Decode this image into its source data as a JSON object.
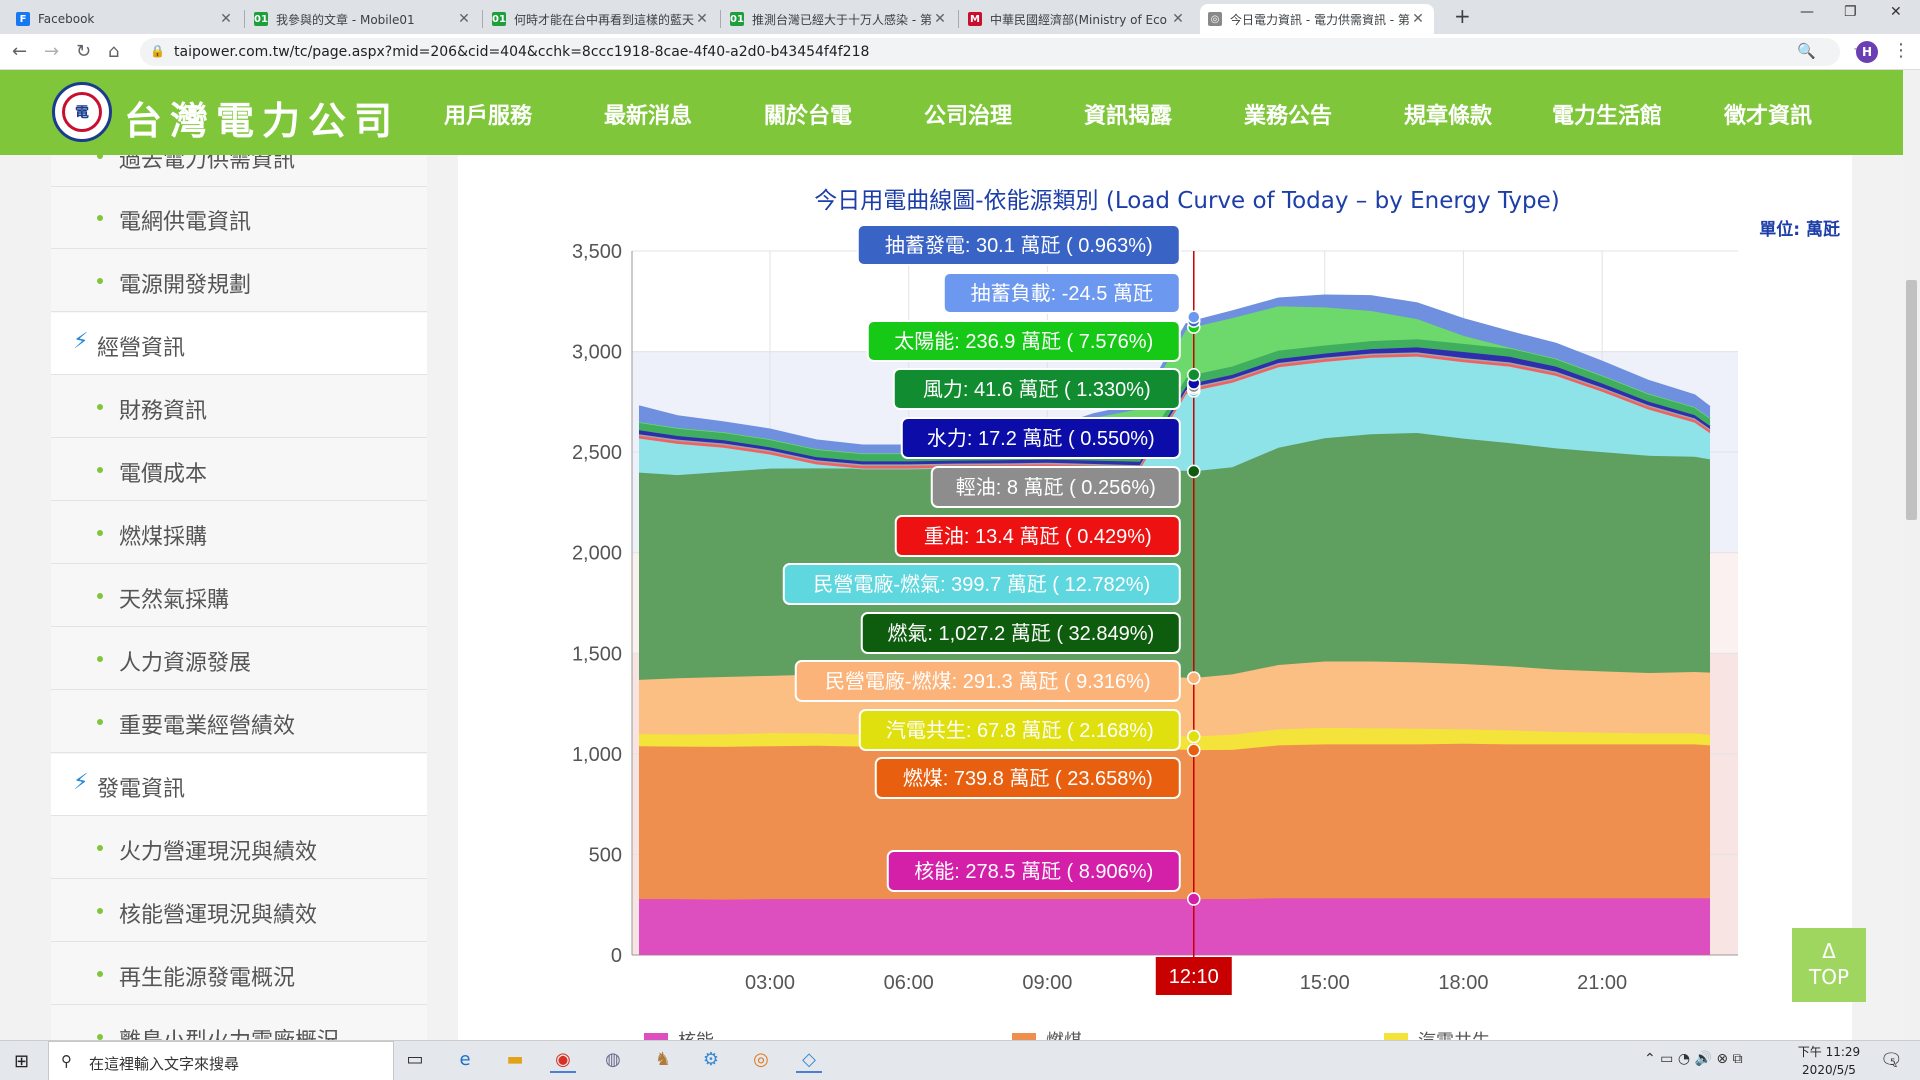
{
  "browser": {
    "tabs": [
      {
        "title": "Facebook",
        "favicon": "F",
        "color": "#1877f2"
      },
      {
        "title": "我參與的文章 - Mobile01",
        "favicon": "01",
        "color": "#1d9f3c"
      },
      {
        "title": "何時才能在台中再看到這樣的藍天",
        "favicon": "01",
        "color": "#1d9f3c"
      },
      {
        "title": "推測台灣已經大于十万人感染 - 第",
        "favicon": "01",
        "color": "#1d9f3c"
      },
      {
        "title": "中華民國經濟部(Ministry of Eco",
        "favicon": "M",
        "color": "#c8102e"
      },
      {
        "title": "今日電力資訊 - 電力供需資訊 - 第",
        "favicon": "◎",
        "color": "#888888"
      }
    ],
    "url": "taipower.com.tw/tc/page.aspx?mid=206&cid=404&cchk=8ccc1918-8cae-4f40-a2d0-b43454f4f218",
    "avatar_letter": "H"
  },
  "site": {
    "logo_text": "台灣電力公司",
    "nav": [
      "用戶服務",
      "最新消息",
      "關於台電",
      "公司治理",
      "資訊揭露",
      "業務公告",
      "規章條款",
      "電力生活館",
      "徵才資訊"
    ]
  },
  "sidebar": {
    "items": [
      {
        "label": "過去電力供需資訊",
        "type": "item"
      },
      {
        "label": "電網供電資訊",
        "type": "item"
      },
      {
        "label": "電源開發規劃",
        "type": "item"
      },
      {
        "label": "經營資訊",
        "type": "header"
      },
      {
        "label": "財務資訊",
        "type": "item"
      },
      {
        "label": "電價成本",
        "type": "item"
      },
      {
        "label": "燃煤採購",
        "type": "item"
      },
      {
        "label": "天然氣採購",
        "type": "item"
      },
      {
        "label": "人力資源發展",
        "type": "item"
      },
      {
        "label": "重要電業經營績效",
        "type": "item"
      },
      {
        "label": "發電資訊",
        "type": "header"
      },
      {
        "label": "火力營運現況與績效",
        "type": "item"
      },
      {
        "label": "核能營運現況與績效",
        "type": "item"
      },
      {
        "label": "再生能源發電概況",
        "type": "item"
      },
      {
        "label": "離島小型火力電廠概況",
        "type": "item"
      }
    ]
  },
  "chart_title": "今日用電曲線圖-依能源類別 (Load Curve of Today – by Energy Type)",
  "unit_label": "單位: 萬瓩",
  "top_button": {
    "arrow": "Δ",
    "label": "TOP"
  },
  "chart_data": {
    "type": "area",
    "stacked": true,
    "y_ticks": [
      "0",
      "500",
      "1,000",
      "1,500",
      "2,000",
      "2,500",
      "3,000",
      "3,500"
    ],
    "ylim": [
      0,
      3500
    ],
    "x_ticks": [
      "03:00",
      "06:00",
      "09:00",
      "15:00",
      "18:00",
      "21:00"
    ],
    "cursor_label": "12:10",
    "x": [
      "00:10",
      "01:00",
      "02:00",
      "03:00",
      "04:00",
      "05:00",
      "06:00",
      "07:00",
      "08:00",
      "09:00",
      "10:00",
      "11:00",
      "12:00",
      "12:10",
      "13:00",
      "14:00",
      "15:00",
      "16:00",
      "17:00",
      "18:00",
      "19:00",
      "20:00",
      "21:00",
      "22:00",
      "23:00",
      "23:20"
    ],
    "series": [
      {
        "name": "核能",
        "color": "#dd4fbf",
        "values": [
          278,
          278,
          275,
          278,
          278,
          278,
          278,
          278,
          278,
          278,
          278,
          278,
          278,
          278.5,
          278,
          282,
          282,
          282,
          282,
          282,
          282,
          282,
          282,
          282,
          282,
          282
        ]
      },
      {
        "name": "燃煤",
        "color": "#ef8f4f",
        "values": [
          760,
          758,
          760,
          760,
          762,
          758,
          758,
          760,
          760,
          758,
          755,
          750,
          742,
          739.8,
          742,
          760,
          765,
          765,
          765,
          768,
          765,
          765,
          765,
          765,
          765,
          760
        ]
      },
      {
        "name": "汽電共生",
        "color": "#f3e33a",
        "values": [
          60,
          60,
          62,
          65,
          62,
          60,
          60,
          62,
          65,
          65,
          65,
          66,
          67,
          67.8,
          75,
          80,
          82,
          80,
          78,
          72,
          70,
          62,
          58,
          55,
          55,
          52
        ]
      },
      {
        "name": "民營電廠-燃煤",
        "color": "#fbbf84",
        "values": [
          270,
          280,
          285,
          285,
          292,
          292,
          292,
          292,
          290,
          295,
          292,
          292,
          292,
          291.3,
          300,
          320,
          330,
          332,
          330,
          325,
          318,
          310,
          305,
          300,
          305,
          310
        ]
      },
      {
        "name": "燃氣",
        "color": "#5f9f5f",
        "values": [
          1030,
          1010,
          1020,
          1030,
          1025,
          1030,
          1030,
          1030,
          1030,
          1030,
          1030,
          1028,
          1028,
          1027.2,
          1030,
          1080,
          1110,
          1130,
          1140,
          1120,
          1110,
          1100,
          1090,
          1080,
          1070,
          1060
        ]
      },
      {
        "name": "民營電廠-燃氣",
        "color": "#8de3e8",
        "values": [
          170,
          155,
          120,
          70,
          20,
          0,
          0,
          0,
          0,
          0,
          0,
          0,
          380,
          399.7,
          420,
          400,
          380,
          380,
          380,
          380,
          380,
          360,
          300,
          230,
          170,
          130
        ]
      },
      {
        "name": "重油",
        "color": "#f26060",
        "values": [
          13,
          13,
          13,
          13,
          13,
          13,
          13,
          13,
          13,
          13,
          13,
          13,
          13,
          13.4,
          13,
          13,
          13,
          13,
          13,
          13,
          13,
          13,
          13,
          13,
          13,
          13
        ]
      },
      {
        "name": "輕油",
        "color": "#a4a4a4",
        "values": [
          8,
          8,
          8,
          8,
          8,
          8,
          8,
          8,
          8,
          8,
          8,
          8,
          8,
          8,
          8,
          8,
          8,
          8,
          8,
          8,
          8,
          8,
          8,
          8,
          8,
          8
        ]
      },
      {
        "name": "水力",
        "color": "#2f2fae",
        "values": [
          20,
          18,
          16,
          15,
          15,
          15,
          15,
          15,
          16,
          16,
          17,
          17,
          17,
          17.2,
          18,
          20,
          20,
          22,
          25,
          30,
          28,
          25,
          20,
          18,
          16,
          15
        ]
      },
      {
        "name": "風力",
        "color": "#3faf5f",
        "values": [
          40,
          40,
          40,
          40,
          40,
          40,
          40,
          40,
          42,
          42,
          42,
          42,
          42,
          41.6,
          42,
          42,
          40,
          40,
          40,
          40,
          40,
          40,
          40,
          40,
          40,
          40
        ]
      },
      {
        "name": "太陽能",
        "color": "#6dd96d",
        "values": [
          0,
          0,
          0,
          0,
          0,
          0,
          0,
          0,
          20,
          90,
          170,
          220,
          240,
          236.9,
          240,
          220,
          190,
          150,
          100,
          40,
          5,
          0,
          0,
          0,
          0,
          0
        ]
      },
      {
        "name": "抽蓄發電",
        "color": "#6f8fdf",
        "values": [
          80,
          60,
          50,
          50,
          45,
          40,
          40,
          30,
          25,
          20,
          20,
          25,
          30,
          30.1,
          35,
          40,
          60,
          75,
          80,
          85,
          80,
          75,
          70,
          65,
          60,
          55
        ]
      }
    ],
    "labels": [
      {
        "text": "抽蓄發電: 30.1 萬瓩 ( 0.963%)",
        "bg": "#3a63c6",
        "dot": "#3a63c6"
      },
      {
        "text": "抽蓄負載: -24.5 萬瓩",
        "bg": "#6c98f0",
        "dot": "#6c98f0"
      },
      {
        "text": "太陽能: 236.9 萬瓩 ( 7.576%)",
        "bg": "#17c917",
        "dot": "#17c917"
      },
      {
        "text": "風力: 41.6 萬瓩 ( 1.330%)",
        "bg": "#118c30",
        "dot": "#118c30"
      },
      {
        "text": "水力: 17.2 萬瓩 ( 0.550%)",
        "bg": "#0c0ca8",
        "dot": "#0c0ca8"
      },
      {
        "text": "輕油: 8 萬瓩 ( 0.256%)",
        "bg": "#8d8d8d",
        "dot": "#8d8d8d"
      },
      {
        "text": "重油: 13.4 萬瓩 ( 0.429%)",
        "bg": "#ee1111",
        "dot": "#ee1111"
      },
      {
        "text": "民營電廠-燃氣: 399.7 萬瓩 ( 12.782%)",
        "bg": "#5fd7de",
        "dot": "#5fd7de"
      },
      {
        "text": "燃氣: 1,027.2 萬瓩 ( 32.849%)",
        "bg": "#0e5d0e",
        "dot": "#0e5d0e"
      },
      {
        "text": "民營電廠-燃煤: 291.3 萬瓩 ( 9.316%)",
        "bg": "#fbb37a",
        "dot": "#fbb37a"
      },
      {
        "text": "汽電共生: 67.8 萬瓩 ( 2.168%)",
        "bg": "#e0e00e",
        "dot": "#e0e00e"
      },
      {
        "text": "燃煤: 739.8 萬瓩 ( 23.658%)",
        "bg": "#e8600f",
        "dot": "#e8600f"
      },
      {
        "text": "核能: 278.5 萬瓩 ( 8.906%)",
        "bg": "#d41fa9",
        "dot": "#d41fa9"
      }
    ],
    "legend_visible": [
      "核能",
      "燃煤",
      "汽電共生"
    ]
  },
  "taskbar": {
    "search_placeholder": "在這裡輸入文字來搜尋",
    "time": "下午 11:29",
    "date": "2020/5/5",
    "notif_count": "5"
  }
}
